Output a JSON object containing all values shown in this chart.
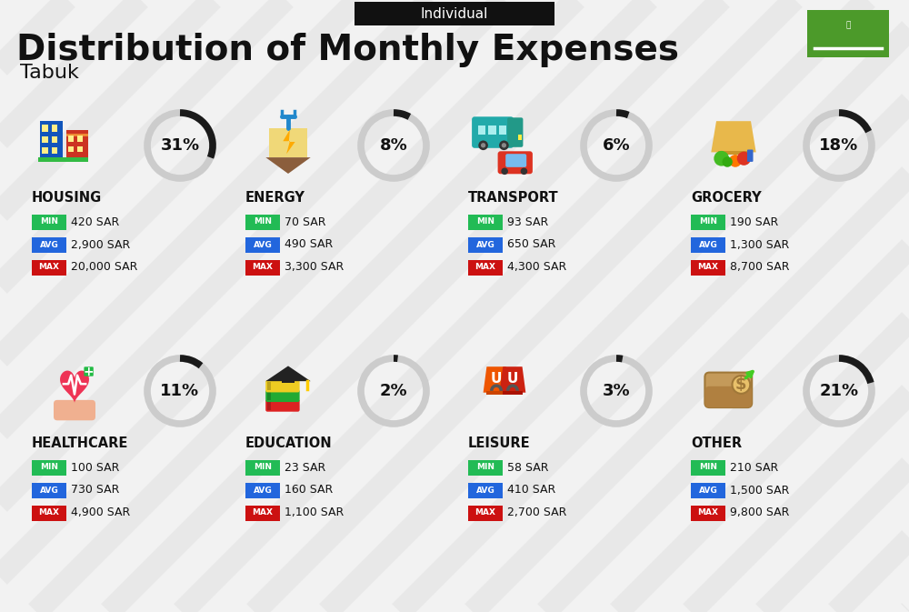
{
  "title": "Distribution of Monthly Expenses",
  "subtitle": "Individual",
  "city": "Tabuk",
  "bg_color": "#f2f2f2",
  "categories": [
    {
      "name": "HOUSING",
      "pct": 31,
      "min": "420 SAR",
      "avg": "2,900 SAR",
      "max": "20,000 SAR",
      "icon": "housing",
      "row": 0,
      "col": 0
    },
    {
      "name": "ENERGY",
      "pct": 8,
      "min": "70 SAR",
      "avg": "490 SAR",
      "max": "3,300 SAR",
      "icon": "energy",
      "row": 0,
      "col": 1
    },
    {
      "name": "TRANSPORT",
      "pct": 6,
      "min": "93 SAR",
      "avg": "650 SAR",
      "max": "4,300 SAR",
      "icon": "transport",
      "row": 0,
      "col": 2
    },
    {
      "name": "GROCERY",
      "pct": 18,
      "min": "190 SAR",
      "avg": "1,300 SAR",
      "max": "8,700 SAR",
      "icon": "grocery",
      "row": 0,
      "col": 3
    },
    {
      "name": "HEALTHCARE",
      "pct": 11,
      "min": "100 SAR",
      "avg": "730 SAR",
      "max": "4,900 SAR",
      "icon": "healthcare",
      "row": 1,
      "col": 0
    },
    {
      "name": "EDUCATION",
      "pct": 2,
      "min": "23 SAR",
      "avg": "160 SAR",
      "max": "1,100 SAR",
      "icon": "education",
      "row": 1,
      "col": 1
    },
    {
      "name": "LEISURE",
      "pct": 3,
      "min": "58 SAR",
      "avg": "410 SAR",
      "max": "2,700 SAR",
      "icon": "leisure",
      "row": 1,
      "col": 2
    },
    {
      "name": "OTHER",
      "pct": 21,
      "min": "210 SAR",
      "avg": "1,500 SAR",
      "max": "9,800 SAR",
      "icon": "other",
      "row": 1,
      "col": 3
    }
  ],
  "min_color": "#22bb55",
  "avg_color": "#2266dd",
  "max_color": "#cc1111",
  "text_color": "#111111",
  "donut_fg": "#1a1a1a",
  "donut_bg": "#cccccc",
  "stripe_color": "#e0e0e0"
}
